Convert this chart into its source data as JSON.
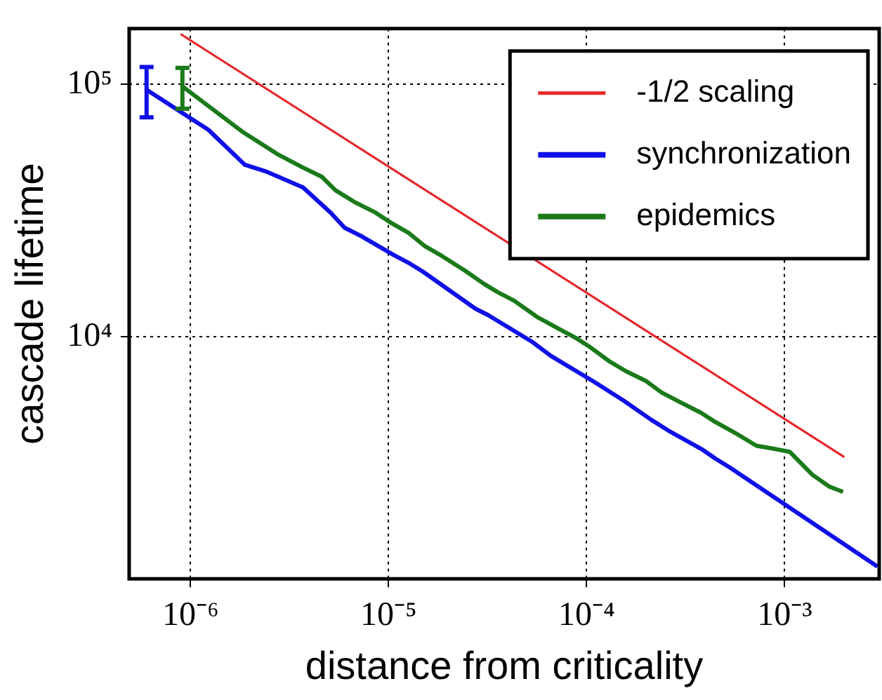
{
  "chart_data": {
    "type": "line",
    "xlabel": "distance from criticality",
    "ylabel": "cascade lifetime",
    "log": "xy",
    "grid": true,
    "legend": "top right",
    "marker": "none",
    "line_style": "solid",
    "xlim": [
      4.9e-07,
      0.003
    ],
    "ylim": [
      1100,
      166000
    ],
    "xticks": [
      {
        "value": 1e-06,
        "label": "10⁻⁶"
      },
      {
        "value": 1e-05,
        "label": "10⁻⁵"
      },
      {
        "value": 0.0001,
        "label": "10⁻⁴"
      },
      {
        "value": 0.001,
        "label": "10⁻³"
      }
    ],
    "yticks": [
      {
        "value": 10000.0,
        "label": "10⁴"
      },
      {
        "value": 100000.0,
        "label": "10⁵"
      }
    ],
    "series": [
      {
        "name": "-1/2 scaling",
        "color": "#e8262a",
        "x": [
          8.9e-07,
          0.002
        ],
        "values": [
          158000,
          3340
        ]
      },
      {
        "name": "synchronization",
        "color": "#1010e8",
        "x": [
          6e-07,
          1.23e-06,
          1.88e-06,
          2.43e-06,
          3.7e-06,
          5.1e-06,
          6e-06,
          7.3e-06,
          1.07e-05,
          1.25e-05,
          1.49e-05,
          2.75e-05,
          3.17e-05,
          5.25e-05,
          6.6e-05,
          0.00011,
          0.000153,
          0.000211,
          0.000265,
          0.000378,
          0.000445,
          0.00053,
          0.00294
        ],
        "values": [
          95000,
          66000,
          48000,
          45000,
          39000,
          31000,
          27000,
          25000,
          21000,
          19700,
          18100,
          12900,
          12200,
          9600,
          8400,
          6600,
          5600,
          4700,
          4200,
          3600,
          3300,
          3030,
          1230
        ],
        "errors": [
          [
            74000,
            117000
          ],
          null,
          null,
          null,
          null,
          null,
          null,
          null,
          null,
          null,
          null,
          null,
          null,
          null,
          null,
          null,
          null,
          null,
          null,
          null,
          null,
          null,
          null
        ]
      },
      {
        "name": "epidemics",
        "color": "#1a7a1a",
        "x": [
          9.1e-07,
          1.82e-06,
          2.73e-06,
          3.65e-06,
          4.6e-06,
          5.4e-06,
          6.8e-06,
          8.6e-06,
          1.01e-05,
          1.26e-05,
          1.53e-05,
          1.8e-05,
          2.42e-05,
          3.03e-05,
          3.56e-05,
          4.3e-05,
          5.6e-05,
          7e-05,
          8.8e-05,
          0.000104,
          0.00013,
          0.000158,
          0.000198,
          0.00024,
          0.000311,
          0.000378,
          0.000445,
          0.00058,
          0.00072,
          0.00088,
          0.00106,
          0.00138,
          0.00168,
          0.00197
        ],
        "values": [
          98000,
          65000,
          53000,
          47000,
          43000,
          38000,
          34000,
          31000,
          28500,
          25800,
          22800,
          21200,
          18300,
          16200,
          15000,
          13900,
          12000,
          10900,
          9900,
          9100,
          8000,
          7300,
          6700,
          6000,
          5400,
          5000,
          4600,
          4100,
          3700,
          3600,
          3500,
          2840,
          2550,
          2430
        ],
        "errors": [
          [
            80000,
            116000
          ],
          null,
          null,
          null,
          null,
          null,
          null,
          null,
          null,
          null,
          null,
          null,
          null,
          null,
          null,
          null,
          null,
          null,
          null,
          null,
          null,
          null,
          null,
          null,
          null,
          null,
          null,
          null,
          null,
          null,
          null,
          null,
          null,
          null
        ]
      }
    ]
  }
}
